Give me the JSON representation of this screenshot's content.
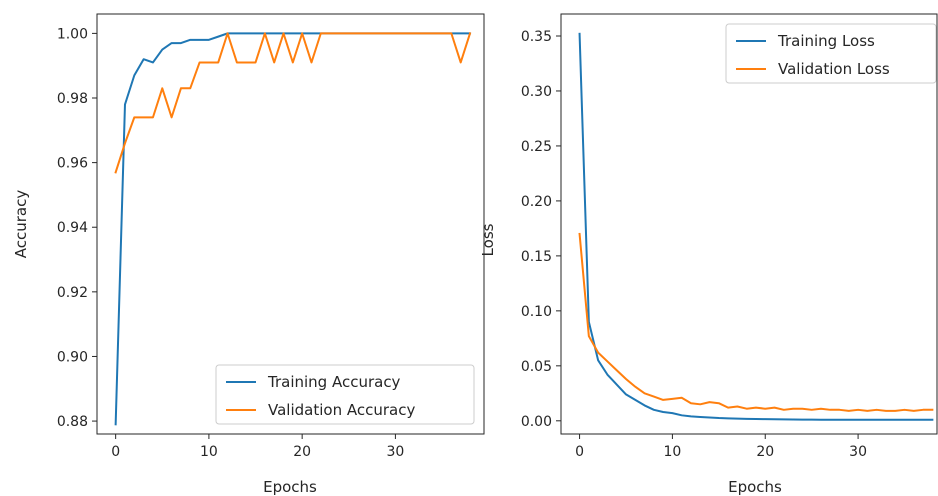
{
  "chart_data": [
    {
      "type": "line",
      "xlabel": "Epochs",
      "ylabel": "Accuracy",
      "xlim": [
        -2,
        39.5
      ],
      "ylim": [
        0.876,
        1.006
      ],
      "xticks": [
        0,
        10,
        20,
        30
      ],
      "yticks": [
        0.88,
        0.9,
        0.92,
        0.94,
        0.96,
        0.98,
        1.0
      ],
      "ytick_labels": [
        "0.88",
        "0.90",
        "0.92",
        "0.94",
        "0.96",
        "0.98",
        "1.00"
      ],
      "grid": false,
      "legend_position": "lower-right",
      "series": [
        {
          "name": "Training Accuracy",
          "color": "#1f77b4",
          "x": [
            0,
            1,
            2,
            3,
            4,
            5,
            6,
            7,
            8,
            9,
            10,
            11,
            12,
            13,
            14,
            15,
            16,
            17,
            18,
            19,
            20,
            21,
            22,
            23,
            24,
            25,
            26,
            27,
            28,
            29,
            30,
            31,
            32,
            33,
            34,
            35,
            36,
            37,
            38
          ],
          "values": [
            0.879,
            0.978,
            0.987,
            0.992,
            0.991,
            0.995,
            0.997,
            0.997,
            0.998,
            0.998,
            0.998,
            0.999,
            1.0,
            1.0,
            1.0,
            1.0,
            1.0,
            1.0,
            1.0,
            1.0,
            1.0,
            1.0,
            1.0,
            1.0,
            1.0,
            1.0,
            1.0,
            1.0,
            1.0,
            1.0,
            1.0,
            1.0,
            1.0,
            1.0,
            1.0,
            1.0,
            1.0,
            1.0,
            1.0
          ]
        },
        {
          "name": "Validation Accuracy",
          "color": "#ff7f0e",
          "x": [
            0,
            1,
            2,
            3,
            4,
            5,
            6,
            7,
            8,
            9,
            10,
            11,
            12,
            13,
            14,
            15,
            16,
            17,
            18,
            19,
            20,
            21,
            22,
            23,
            24,
            25,
            26,
            27,
            28,
            29,
            30,
            31,
            32,
            33,
            34,
            35,
            36,
            37,
            38
          ],
          "values": [
            0.957,
            0.966,
            0.974,
            0.974,
            0.974,
            0.983,
            0.974,
            0.983,
            0.983,
            0.991,
            0.991,
            0.991,
            1.0,
            0.991,
            0.991,
            0.991,
            1.0,
            0.991,
            1.0,
            0.991,
            1.0,
            0.991,
            1.0,
            1.0,
            1.0,
            1.0,
            1.0,
            1.0,
            1.0,
            1.0,
            1.0,
            1.0,
            1.0,
            1.0,
            1.0,
            1.0,
            1.0,
            0.991,
            1.0
          ]
        }
      ]
    },
    {
      "type": "line",
      "xlabel": "Epochs",
      "ylabel": "Loss",
      "xlim": [
        -2,
        38.5
      ],
      "ylim": [
        -0.012,
        0.37
      ],
      "xticks": [
        0,
        10,
        20,
        30
      ],
      "yticks": [
        0.0,
        0.05,
        0.1,
        0.15,
        0.2,
        0.25,
        0.3,
        0.35
      ],
      "ytick_labels": [
        "0.00",
        "0.05",
        "0.10",
        "0.15",
        "0.20",
        "0.25",
        "0.30",
        "0.35"
      ],
      "grid": false,
      "legend_position": "upper-right",
      "series": [
        {
          "name": "Training Loss",
          "color": "#1f77b4",
          "x": [
            0,
            1,
            2,
            3,
            4,
            5,
            6,
            7,
            8,
            9,
            10,
            11,
            12,
            13,
            14,
            15,
            16,
            17,
            18,
            19,
            20,
            21,
            22,
            23,
            24,
            25,
            26,
            27,
            28,
            29,
            30,
            31,
            32,
            33,
            34,
            35,
            36,
            37,
            38
          ],
          "values": [
            0.352,
            0.09,
            0.055,
            0.042,
            0.033,
            0.024,
            0.019,
            0.014,
            0.01,
            0.008,
            0.007,
            0.005,
            0.004,
            0.0035,
            0.003,
            0.0025,
            0.0022,
            0.002,
            0.0018,
            0.0016,
            0.0015,
            0.0014,
            0.0013,
            0.0012,
            0.0011,
            0.0011,
            0.001,
            0.001,
            0.001,
            0.001,
            0.001,
            0.001,
            0.001,
            0.001,
            0.001,
            0.001,
            0.001,
            0.001,
            0.001
          ]
        },
        {
          "name": "Validation Loss",
          "color": "#ff7f0e",
          "x": [
            0,
            1,
            2,
            3,
            4,
            5,
            6,
            7,
            8,
            9,
            10,
            11,
            12,
            13,
            14,
            15,
            16,
            17,
            18,
            19,
            20,
            21,
            22,
            23,
            24,
            25,
            26,
            27,
            28,
            29,
            30,
            31,
            32,
            33,
            34,
            35,
            36,
            37,
            38
          ],
          "values": [
            0.17,
            0.077,
            0.062,
            0.054,
            0.046,
            0.038,
            0.031,
            0.025,
            0.022,
            0.019,
            0.02,
            0.021,
            0.016,
            0.015,
            0.017,
            0.016,
            0.012,
            0.013,
            0.011,
            0.012,
            0.011,
            0.012,
            0.01,
            0.011,
            0.011,
            0.01,
            0.011,
            0.01,
            0.01,
            0.009,
            0.01,
            0.009,
            0.01,
            0.009,
            0.009,
            0.01,
            0.009,
            0.01,
            0.01
          ]
        }
      ]
    }
  ]
}
